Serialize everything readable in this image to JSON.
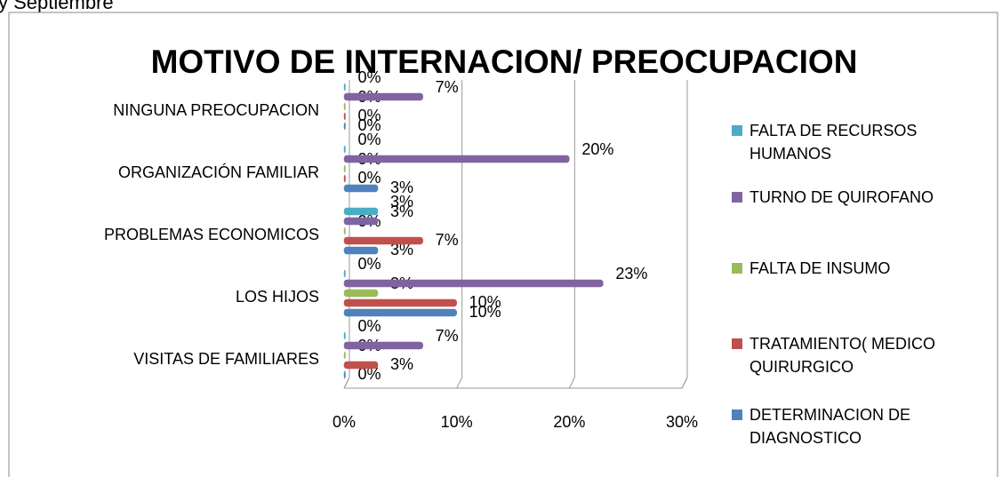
{
  "header_text": "y Septiembre",
  "chart_data": {
    "type": "bar",
    "orientation": "horizontal",
    "title": "MOTIVO DE INTERNACION/ PREOCUPACION",
    "categories": [
      "VISITAS DE FAMILIARES",
      "LOS HIJOS",
      "PROBLEMAS ECONOMICOS",
      "ORGANIZACIÓN FAMILIAR",
      "NINGUNA PREOCUPACION"
    ],
    "series": [
      {
        "name": "DETERMINACION DE DIAGNOSTICO",
        "color": "#4f81bd",
        "values": [
          0,
          10,
          3,
          3,
          0
        ],
        "value_labels": [
          "0%",
          "10%",
          "3%",
          "3%",
          "0%"
        ]
      },
      {
        "name": "TRATAMIENTO( MEDICO QUIRURGICO",
        "color": "#c0504d",
        "values": [
          3,
          10,
          7,
          0,
          0
        ],
        "value_labels": [
          "3%",
          "10%",
          "7%",
          "0%",
          "0%"
        ]
      },
      {
        "name": "FALTA DE INSUMO",
        "color": "#9bbb59",
        "values": [
          0,
          3,
          0,
          0,
          0
        ],
        "value_labels": [
          "0%",
          "3%",
          "0%",
          "0%",
          "0%"
        ]
      },
      {
        "name": "TURNO DE QUIROFANO",
        "color": "#8064a2",
        "values": [
          7,
          23,
          3,
          20,
          7
        ],
        "value_labels": [
          "7%",
          "23%",
          "3%",
          "20%",
          "7%"
        ]
      },
      {
        "name": "FALTA DE RECURSOS HUMANOS",
        "color": "#4bacc6",
        "values": [
          0,
          0,
          3,
          0,
          0
        ],
        "value_labels": [
          "0%",
          "0%",
          "3%",
          "0%",
          "0%"
        ]
      }
    ],
    "xlim": [
      0,
      30
    ],
    "xticks": [
      {
        "value": 0,
        "label": "0%"
      },
      {
        "value": 10,
        "label": "10%"
      },
      {
        "value": 20,
        "label": "20%"
      },
      {
        "value": 30,
        "label": "30%"
      }
    ],
    "grid": true,
    "legend": "right"
  }
}
